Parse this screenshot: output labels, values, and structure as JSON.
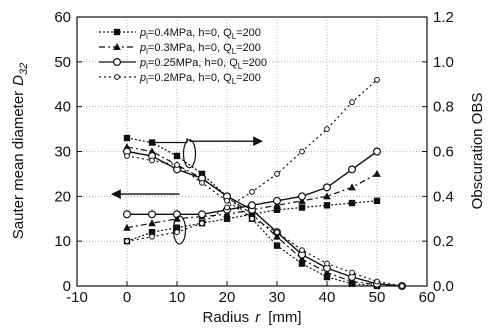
{
  "chart_data": {
    "type": "line",
    "xlabel": "Radius",
    "xlabel_symbol": "r",
    "xlabel_unit": "[mm]",
    "ylabel_left": "Sauter mean diameter",
    "ylabel_left_symbol": "D",
    "ylabel_left_subscript": "32",
    "ylabel_right": "Obscuration  OBS",
    "xlim": [
      -10,
      60
    ],
    "ylim_left": [
      0,
      60
    ],
    "ylim_right": [
      0.0,
      1.2
    ],
    "x_ticks": [
      "-10",
      "0",
      "10",
      "20",
      "30",
      "40",
      "50",
      "60"
    ],
    "y_left_ticks": [
      "0",
      "10",
      "20",
      "30",
      "40",
      "50",
      "60"
    ],
    "y_right_ticks": [
      "0.0",
      "0.2",
      "0.4",
      "0.6",
      "0.8",
      "1.0",
      "1.2"
    ],
    "legend_position": "top-center",
    "series": [
      {
        "name": "p_l=0.4MPa, h=0, Q_L=200",
        "legend_label": {
          "p": "p",
          "sub1": "l",
          "rest1": "=0.4MPa, h=0, Q",
          "sub2": "L",
          "rest2": "=200"
        },
        "marker": "square-filled",
        "line": "dotted-dense",
        "d32": {
          "x": [
            0,
            5,
            10,
            15,
            20,
            25,
            30,
            35,
            40,
            45,
            50
          ],
          "y": [
            33,
            32,
            29,
            25,
            20,
            15,
            9,
            5,
            2,
            0.5,
            0
          ]
        },
        "obs": {
          "x": [
            0,
            5,
            10,
            15,
            20,
            25,
            30,
            35,
            40,
            45,
            50
          ],
          "y": [
            0.2,
            0.24,
            0.26,
            0.28,
            0.3,
            0.32,
            0.34,
            0.35,
            0.36,
            0.37,
            0.38
          ]
        }
      },
      {
        "name": "p_l=0.3MPa, h=0, Q_L=200",
        "legend_label": {
          "p": "p",
          "sub1": "l",
          "rest1": "=0.3MPa, h=0, Q",
          "sub2": "L",
          "rest2": "=200"
        },
        "marker": "triangle-filled",
        "line": "dash-dot",
        "d32": {
          "x": [
            0,
            5,
            10,
            15,
            20,
            25,
            30,
            35,
            40,
            45,
            50
          ],
          "y": [
            31,
            30,
            27,
            24,
            20,
            16,
            11,
            6,
            3,
            1,
            0.3
          ]
        },
        "obs": {
          "x": [
            0,
            5,
            10,
            15,
            20,
            25,
            30,
            35,
            40,
            45,
            50
          ],
          "y": [
            0.26,
            0.28,
            0.3,
            0.31,
            0.32,
            0.34,
            0.36,
            0.38,
            0.4,
            0.44,
            0.5
          ]
        }
      },
      {
        "name": "p_l=0.25MPa, h=0, Q_L=200",
        "legend_label": {
          "p": "p",
          "sub1": "l",
          "rest1": "=0.25MPa, h=0, Q",
          "sub2": "L",
          "rest2": "=200"
        },
        "marker": "circle-open",
        "line": "solid",
        "d32": {
          "x": [
            0,
            5,
            10,
            15,
            20,
            25,
            30,
            35,
            40,
            45,
            50,
            55
          ],
          "y": [
            30,
            29,
            26,
            24,
            20,
            17,
            12,
            7,
            4,
            2,
            0.5,
            0
          ]
        },
        "obs": {
          "x": [
            0,
            5,
            10,
            15,
            20,
            25,
            30,
            35,
            40,
            45,
            50
          ],
          "y": [
            0.32,
            0.32,
            0.32,
            0.32,
            0.34,
            0.36,
            0.38,
            0.4,
            0.44,
            0.52,
            0.6
          ]
        }
      },
      {
        "name": "p_l=0.2MPa, h=0, Q_L=200",
        "legend_label": {
          "p": "p",
          "sub1": "l",
          "rest1": "=0.2MPa, h=0, Q",
          "sub2": "L",
          "rest2": "=200"
        },
        "marker": "circle-small-open",
        "line": "dotted-sparse",
        "d32": {
          "x": [
            0,
            5,
            10,
            15,
            20,
            25,
            30,
            35,
            40,
            45,
            50,
            55
          ],
          "y": [
            29,
            28,
            27,
            23,
            19,
            15,
            12,
            8,
            5,
            3,
            1,
            0
          ]
        },
        "obs": {
          "x": [
            0,
            5,
            10,
            15,
            20,
            25,
            30,
            35,
            40,
            45,
            50
          ],
          "y": [
            0.2,
            0.22,
            0.24,
            0.28,
            0.35,
            0.42,
            0.5,
            0.6,
            0.7,
            0.82,
            0.92
          ]
        }
      }
    ],
    "annotations": [
      {
        "kind": "ellipse-arrow",
        "points_to": "right-axis",
        "group": "obs"
      },
      {
        "kind": "ellipse-arrow",
        "points_to": "left-axis",
        "group": "d32"
      }
    ]
  }
}
